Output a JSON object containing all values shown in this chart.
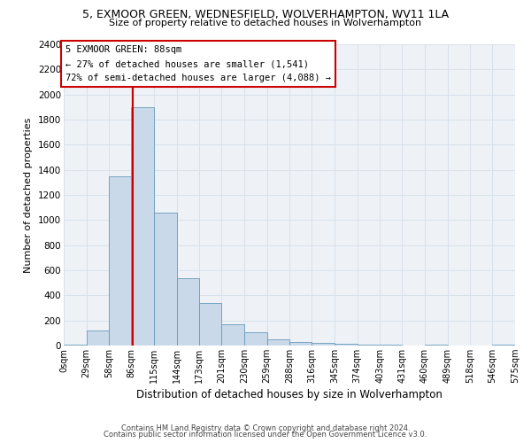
{
  "title": "5, EXMOOR GREEN, WEDNESFIELD, WOLVERHAMPTON, WV11 1LA",
  "subtitle": "Size of property relative to detached houses in Wolverhampton",
  "xlabel": "Distribution of detached houses by size in Wolverhampton",
  "ylabel": "Number of detached properties",
  "footer_line1": "Contains HM Land Registry data © Crown copyright and database right 2024.",
  "footer_line2": "Contains public sector information licensed under the Open Government Licence v3.0.",
  "annotation_title": "5 EXMOOR GREEN: 88sqm",
  "annotation_line1": "← 27% of detached houses are smaller (1,541)",
  "annotation_line2": "72% of semi-detached houses are larger (4,088) →",
  "property_size": 88,
  "bar_color": "#c9d9ea",
  "bar_edge_color": "#6699bb",
  "redline_color": "#cc0000",
  "annotation_box_color": "#ffffff",
  "annotation_box_edge": "#cc0000",
  "grid_color": "#d8e0ea",
  "background_color": "#eef2f7",
  "bins": [
    0,
    29,
    58,
    86,
    115,
    144,
    173,
    201,
    230,
    259,
    288,
    316,
    345,
    374,
    403,
    431,
    460,
    489,
    518,
    546,
    575
  ],
  "bin_labels": [
    "0sqm",
    "29sqm",
    "58sqm",
    "86sqm",
    "115sqm",
    "144sqm",
    "173sqm",
    "201sqm",
    "230sqm",
    "259sqm",
    "288sqm",
    "316sqm",
    "345sqm",
    "374sqm",
    "403sqm",
    "431sqm",
    "460sqm",
    "489sqm",
    "518sqm",
    "546sqm",
    "575sqm"
  ],
  "heights": [
    10,
    120,
    1350,
    1900,
    1060,
    540,
    340,
    170,
    105,
    50,
    30,
    20,
    15,
    10,
    5,
    0,
    5,
    0,
    0,
    5
  ],
  "ylim": [
    0,
    2400
  ],
  "yticks": [
    0,
    200,
    400,
    600,
    800,
    1000,
    1200,
    1400,
    1600,
    1800,
    2000,
    2200,
    2400
  ]
}
